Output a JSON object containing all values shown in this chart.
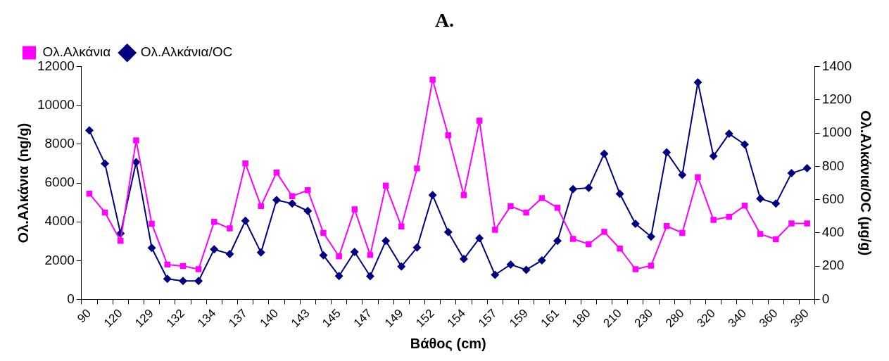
{
  "chart_data": {
    "type": "line",
    "title": "A.",
    "xlabel": "Βάθος (cm)",
    "ylabel": "Ολ.Αλκάνια (ng/g)",
    "y2label": "Ολ.Αλκάνια/OC (μg/g)",
    "categories": [
      "90",
      null,
      "120",
      null,
      "129",
      null,
      "132",
      null,
      "134",
      null,
      "137",
      null,
      "140",
      null,
      "143",
      null,
      "145",
      null,
      "147",
      null,
      "149",
      null,
      "152",
      null,
      "154",
      null,
      "157",
      null,
      "159",
      null,
      "161",
      null,
      "180",
      null,
      "210",
      null,
      "230",
      null,
      "280",
      null,
      "320",
      null,
      "340",
      null,
      "360",
      null,
      "390"
    ],
    "series": [
      {
        "name": "Ολ.Αλκάνια",
        "color": "#ff00ff",
        "marker": "square",
        "values": [
          5450,
          4480,
          3020,
          8200,
          3900,
          1800,
          1720,
          1560,
          4000,
          3660,
          7010,
          4810,
          6540,
          5320,
          5630,
          3430,
          2220,
          4640,
          2290,
          5870,
          3760,
          6750,
          11320,
          8460,
          5380,
          9210,
          3590,
          4810,
          4480,
          5220,
          4720,
          3120,
          2850,
          3480,
          2620,
          1560,
          1740,
          3780,
          3430,
          6300,
          4100,
          4260,
          4830,
          3370,
          3100,
          3920,
          3920
        ]
      },
      {
        "name": "Ολ.Αλκάνια/OC",
        "color": "#000080",
        "marker": "diamond",
        "axis": "y2",
        "values": [
          1016,
          817,
          397,
          825,
          310,
          124,
          111,
          111,
          301,
          273,
          473,
          282,
          598,
          576,
          532,
          266,
          141,
          286,
          140,
          352,
          198,
          312,
          627,
          405,
          243,
          368,
          148,
          210,
          178,
          235,
          352,
          663,
          671,
          876,
          635,
          455,
          378,
          884,
          749,
          1305,
          862,
          996,
          932,
          606,
          576,
          759,
          789
        ]
      }
    ],
    "ylim": [
      0,
      12000
    ],
    "yticks": [
      0,
      2000,
      4000,
      6000,
      8000,
      10000,
      12000
    ],
    "y2lim": [
      0,
      1400
    ],
    "y2ticks": [
      0,
      200,
      400,
      600,
      800,
      1000,
      1200,
      1400
    ],
    "grid": false,
    "legend": "top left",
    "line_style": "solid"
  }
}
